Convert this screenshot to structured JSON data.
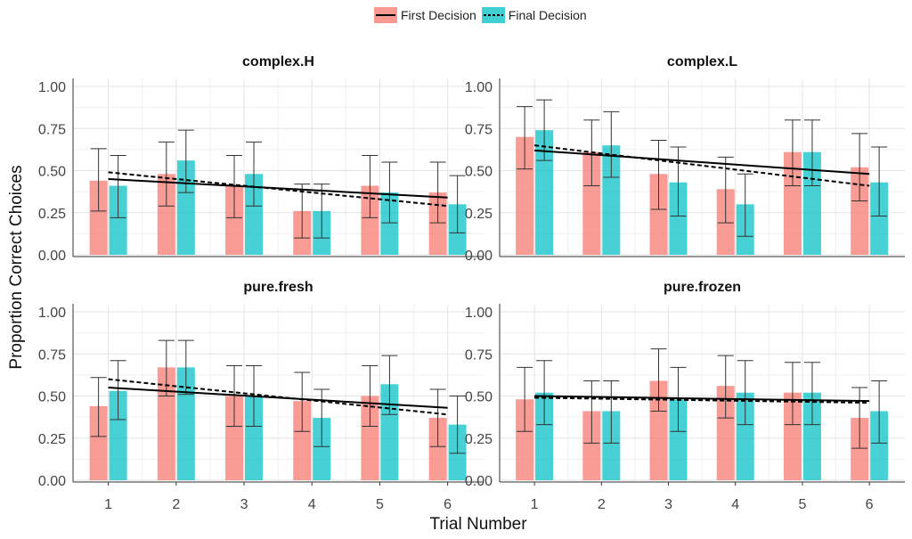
{
  "legend": {
    "items": [
      {
        "label": "First Decision",
        "fill": "#F8766D",
        "line": "solid"
      },
      {
        "label": "Final Decision",
        "fill": "#00BFC4",
        "line": "dashed"
      }
    ]
  },
  "chart_data": {
    "type": "bar",
    "xlabel": "Trial Number",
    "ylabel": "Proportion Correct Choices",
    "categories": [
      "1",
      "2",
      "3",
      "4",
      "5",
      "6"
    ],
    "ylim": [
      0,
      1
    ],
    "yticks": [
      "0.00",
      "0.25",
      "0.50",
      "0.75",
      "1.00"
    ],
    "grid": true,
    "legend_position": "top",
    "colors": {
      "first": "#F8766D",
      "final": "#00BFC4"
    },
    "panels": [
      {
        "title": "complex.H",
        "series": [
          {
            "name": "First Decision",
            "values": [
              0.44,
              0.48,
              0.41,
              0.26,
              0.41,
              0.37
            ],
            "err_low": [
              0.26,
              0.29,
              0.22,
              0.1,
              0.22,
              0.19
            ],
            "err_high": [
              0.63,
              0.67,
              0.59,
              0.42,
              0.59,
              0.55
            ],
            "trend": [
              0.45,
              0.34
            ]
          },
          {
            "name": "Final Decision",
            "values": [
              0.41,
              0.56,
              0.48,
              0.26,
              0.37,
              0.3
            ],
            "err_low": [
              0.22,
              0.37,
              0.29,
              0.1,
              0.19,
              0.13
            ],
            "err_high": [
              0.59,
              0.74,
              0.67,
              0.42,
              0.55,
              0.47
            ],
            "trend": [
              0.49,
              0.29
            ]
          }
        ]
      },
      {
        "title": "complex.L",
        "series": [
          {
            "name": "First Decision",
            "values": [
              0.7,
              0.61,
              0.48,
              0.39,
              0.61,
              0.52
            ],
            "err_low": [
              0.51,
              0.41,
              0.27,
              0.19,
              0.41,
              0.32
            ],
            "err_high": [
              0.88,
              0.8,
              0.68,
              0.58,
              0.8,
              0.72
            ],
            "trend": [
              0.62,
              0.48
            ]
          },
          {
            "name": "Final Decision",
            "values": [
              0.74,
              0.65,
              0.43,
              0.3,
              0.61,
              0.43
            ],
            "err_low": [
              0.56,
              0.46,
              0.23,
              0.11,
              0.41,
              0.23
            ],
            "err_high": [
              0.92,
              0.85,
              0.64,
              0.48,
              0.8,
              0.64
            ],
            "trend": [
              0.65,
              0.41
            ]
          }
        ]
      },
      {
        "title": "pure.fresh",
        "series": [
          {
            "name": "First Decision",
            "values": [
              0.44,
              0.67,
              0.5,
              0.47,
              0.5,
              0.37
            ],
            "err_low": [
              0.26,
              0.5,
              0.32,
              0.29,
              0.32,
              0.2
            ],
            "err_high": [
              0.61,
              0.83,
              0.68,
              0.64,
              0.68,
              0.54
            ],
            "trend": [
              0.55,
              0.43
            ]
          },
          {
            "name": "Final Decision",
            "values": [
              0.53,
              0.67,
              0.5,
              0.37,
              0.57,
              0.33
            ],
            "err_low": [
              0.36,
              0.51,
              0.32,
              0.2,
              0.39,
              0.16
            ],
            "err_high": [
              0.71,
              0.83,
              0.68,
              0.54,
              0.74,
              0.5
            ],
            "trend": [
              0.6,
              0.39
            ]
          }
        ]
      },
      {
        "title": "pure.frozen",
        "series": [
          {
            "name": "First Decision",
            "values": [
              0.48,
              0.41,
              0.59,
              0.56,
              0.52,
              0.37
            ],
            "err_low": [
              0.29,
              0.22,
              0.41,
              0.37,
              0.33,
              0.19
            ],
            "err_high": [
              0.67,
              0.59,
              0.78,
              0.74,
              0.7,
              0.55
            ],
            "trend": [
              0.5,
              0.47
            ]
          },
          {
            "name": "Final Decision",
            "values": [
              0.52,
              0.41,
              0.48,
              0.52,
              0.52,
              0.41
            ],
            "err_low": [
              0.33,
              0.22,
              0.29,
              0.33,
              0.33,
              0.22
            ],
            "err_high": [
              0.71,
              0.59,
              0.67,
              0.71,
              0.7,
              0.59
            ],
            "trend": [
              0.49,
              0.46
            ]
          }
        ]
      }
    ]
  }
}
